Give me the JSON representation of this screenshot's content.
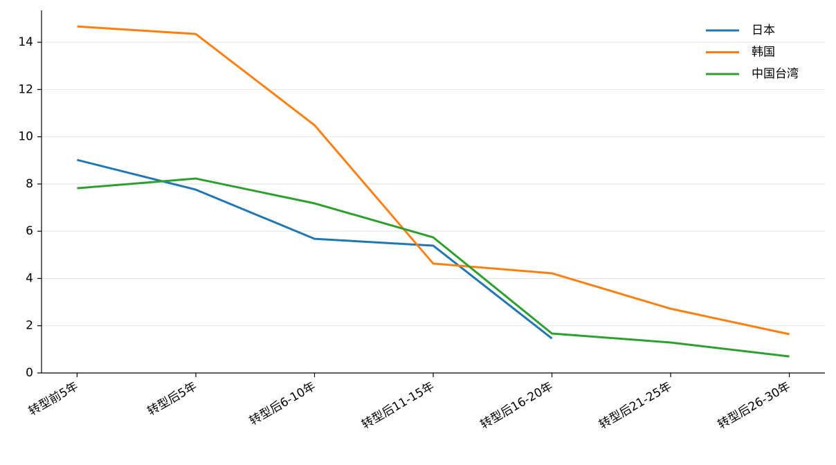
{
  "chart_data": {
    "type": "line",
    "categories": [
      "转型前5年",
      "转型后5年",
      "转型后6-10年",
      "转型后11-15年",
      "转型后16-20年",
      "转型后21-25年",
      "转型后26-30年"
    ],
    "series": [
      {
        "name": "日本",
        "color": "#1f77b4",
        "values": [
          9.02,
          7.76,
          5.68,
          5.39,
          1.46,
          null,
          null
        ]
      },
      {
        "name": "韩国",
        "color": "#ff7f0e",
        "values": [
          14.67,
          14.35,
          10.49,
          4.63,
          4.22,
          2.72,
          1.64
        ]
      },
      {
        "name": "中国台湾",
        "color": "#2ca02c",
        "values": [
          7.82,
          8.23,
          7.18,
          5.74,
          1.67,
          1.29,
          0.7
        ]
      }
    ],
    "ylim": [
      0,
      15.35
    ],
    "yticks": [
      0,
      2,
      4,
      6,
      8,
      10,
      12,
      14
    ],
    "grid": true,
    "legend": "upper right"
  }
}
